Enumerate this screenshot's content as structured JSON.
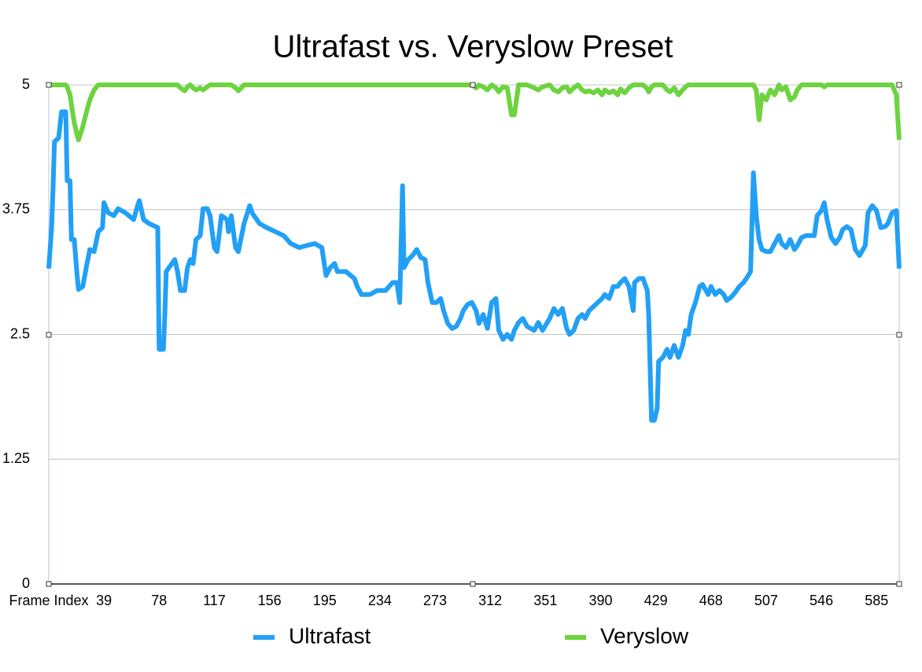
{
  "chart_data": {
    "type": "line",
    "title": "Ultrafast vs. Veryslow Preset",
    "x": [
      0,
      2,
      3,
      4,
      7,
      9,
      12,
      13,
      15,
      16,
      18,
      20,
      21,
      24,
      27,
      29,
      32,
      35,
      38,
      39,
      42,
      46,
      49,
      54,
      60,
      63,
      64,
      67,
      71,
      77,
      78,
      81,
      82,
      83,
      87,
      89,
      91,
      93,
      96,
      98,
      100,
      102,
      104,
      107,
      109,
      112,
      114,
      117,
      119,
      122,
      126,
      127,
      129,
      132,
      134,
      138,
      142,
      144,
      149,
      154,
      160,
      166,
      171,
      177,
      182,
      188,
      193,
      196,
      199,
      202,
      204,
      210,
      216,
      218,
      221,
      227,
      232,
      238,
      243,
      246,
      248,
      250,
      251,
      254,
      257,
      260,
      263,
      266,
      268,
      271,
      274,
      277,
      279,
      282,
      285,
      288,
      291,
      293,
      296,
      299,
      302,
      304,
      307,
      310,
      313,
      316,
      318,
      321,
      324,
      327,
      329,
      332,
      335,
      338,
      343,
      346,
      349,
      354,
      357,
      360,
      363,
      366,
      368,
      371,
      374,
      377,
      379,
      382,
      385,
      388,
      391,
      393,
      396,
      399,
      402,
      404,
      407,
      410,
      413,
      414,
      417,
      420,
      423,
      424,
      426,
      428,
      430,
      431,
      434,
      437,
      439,
      442,
      445,
      448,
      450,
      452,
      454,
      457,
      460,
      462,
      466,
      468,
      471,
      474,
      477,
      479,
      482,
      485,
      488,
      491,
      493,
      496,
      498,
      500,
      502,
      504,
      507,
      510,
      513,
      516,
      518,
      521,
      524,
      527,
      529,
      532,
      535,
      538,
      541,
      543,
      546,
      548,
      550,
      553,
      556,
      559,
      561,
      564,
      567,
      570,
      573,
      577,
      579,
      582,
      585,
      588,
      591,
      593,
      596,
      599,
      601
    ],
    "series": [
      {
        "name": "Ultrafast",
        "color": "#22a0f5",
        "values": [
          3.16,
          3.57,
          3.96,
          4.43,
          4.47,
          4.73,
          4.73,
          4.04,
          4.04,
          3.45,
          3.45,
          3.09,
          2.95,
          2.98,
          3.21,
          3.35,
          3.33,
          3.53,
          3.57,
          3.82,
          3.72,
          3.69,
          3.76,
          3.72,
          3.65,
          3.8,
          3.84,
          3.65,
          3.61,
          3.57,
          2.35,
          2.35,
          2.7,
          3.13,
          3.21,
          3.25,
          3.13,
          2.94,
          2.94,
          3.17,
          3.25,
          3.21,
          3.45,
          3.49,
          3.76,
          3.76,
          3.69,
          3.37,
          3.33,
          3.69,
          3.65,
          3.53,
          3.69,
          3.37,
          3.33,
          3.61,
          3.79,
          3.71,
          3.61,
          3.57,
          3.53,
          3.49,
          3.41,
          3.37,
          3.39,
          3.41,
          3.37,
          3.09,
          3.17,
          3.21,
          3.13,
          3.13,
          3.06,
          2.98,
          2.9,
          2.9,
          2.94,
          2.94,
          3.02,
          3.02,
          2.82,
          3.99,
          3.17,
          3.25,
          3.29,
          3.35,
          3.27,
          3.25,
          3.02,
          2.82,
          2.82,
          2.86,
          2.74,
          2.61,
          2.56,
          2.58,
          2.66,
          2.74,
          2.8,
          2.82,
          2.74,
          2.61,
          2.7,
          2.56,
          2.82,
          2.86,
          2.54,
          2.45,
          2.5,
          2.45,
          2.54,
          2.62,
          2.66,
          2.58,
          2.54,
          2.62,
          2.54,
          2.66,
          2.76,
          2.7,
          2.76,
          2.56,
          2.5,
          2.54,
          2.66,
          2.7,
          2.66,
          2.74,
          2.78,
          2.82,
          2.86,
          2.9,
          2.86,
          2.98,
          2.98,
          3.02,
          3.06,
          2.98,
          2.74,
          3.02,
          3.06,
          3.06,
          2.94,
          2.7,
          1.64,
          1.64,
          1.76,
          2.23,
          2.27,
          2.35,
          2.27,
          2.39,
          2.27,
          2.39,
          2.54,
          2.5,
          2.7,
          2.82,
          2.98,
          3.0,
          2.9,
          2.98,
          2.9,
          2.94,
          2.9,
          2.84,
          2.87,
          2.92,
          2.98,
          3.02,
          3.06,
          3.13,
          4.12,
          3.69,
          3.45,
          3.35,
          3.33,
          3.33,
          3.41,
          3.49,
          3.41,
          3.37,
          3.45,
          3.35,
          3.39,
          3.47,
          3.49,
          3.49,
          3.49,
          3.69,
          3.74,
          3.82,
          3.65,
          3.47,
          3.41,
          3.47,
          3.55,
          3.58,
          3.55,
          3.35,
          3.29,
          3.39,
          3.72,
          3.79,
          3.74,
          3.57,
          3.58,
          3.61,
          3.72,
          3.74,
          3.16
        ]
      },
      {
        "name": "Veryslow",
        "color": "#6dd33f",
        "values": [
          5,
          5,
          5,
          5,
          5,
          5,
          5,
          4.98,
          4.9,
          4.8,
          4.62,
          4.5,
          4.45,
          4.58,
          4.75,
          4.85,
          4.95,
          5,
          5,
          5,
          5,
          5,
          5,
          5,
          5,
          5,
          5,
          5,
          5,
          5,
          5,
          5,
          5,
          5,
          5,
          5,
          5,
          4.97,
          4.94,
          4.98,
          5,
          4.97,
          4.95,
          4.97,
          4.95,
          4.98,
          5,
          5,
          5,
          5,
          5,
          5,
          5,
          4.97,
          4.94,
          5,
          5,
          5,
          5,
          5,
          5,
          5,
          5,
          5,
          5,
          5,
          5,
          5,
          5,
          5,
          5,
          5,
          5,
          5,
          5,
          5,
          5,
          5,
          5,
          5,
          5,
          5,
          5,
          5,
          5,
          5,
          5,
          5,
          5,
          5,
          5,
          5,
          5,
          5,
          5,
          5,
          5,
          5,
          5,
          5,
          4.97,
          5,
          4.98,
          4.95,
          5,
          4.97,
          4.93,
          4.98,
          4.97,
          4.7,
          4.7,
          5,
          5,
          5,
          4.97,
          4.95,
          4.98,
          5,
          4.95,
          4.93,
          4.97,
          4.98,
          4.93,
          4.97,
          5,
          4.95,
          4.93,
          4.94,
          4.92,
          4.95,
          4.9,
          4.95,
          4.92,
          4.94,
          4.9,
          4.96,
          4.92,
          4.97,
          5,
          5,
          5,
          5,
          4.96,
          4.93,
          4.98,
          5,
          5,
          5,
          5,
          4.95,
          4.93,
          4.97,
          4.9,
          4.95,
          4.98,
          5,
          5,
          5,
          5,
          5,
          5,
          5,
          5,
          5,
          5,
          5,
          5,
          5,
          5,
          5,
          5,
          5,
          5,
          4.95,
          4.65,
          4.9,
          4.85,
          4.95,
          4.9,
          5,
          4.95,
          4.98,
          4.85,
          4.88,
          4.95,
          5,
          5,
          5,
          5,
          5,
          5,
          4.98,
          5,
          5,
          5,
          5,
          5,
          5,
          5,
          5,
          5,
          5,
          5,
          5,
          5,
          5,
          5,
          5,
          5,
          4.9,
          4.45
        ]
      }
    ],
    "xlim": [
      0,
      601
    ],
    "xticks": [
      {
        "value": 0,
        "label": "Frame Index"
      },
      39,
      78,
      117,
      156,
      195,
      234,
      273,
      312,
      351,
      390,
      429,
      468,
      507,
      546,
      585
    ],
    "ylim": [
      0,
      5
    ],
    "yticks": [
      0,
      1.25,
      2.5,
      3.75,
      5
    ],
    "grid": true,
    "legend": "bottom"
  }
}
